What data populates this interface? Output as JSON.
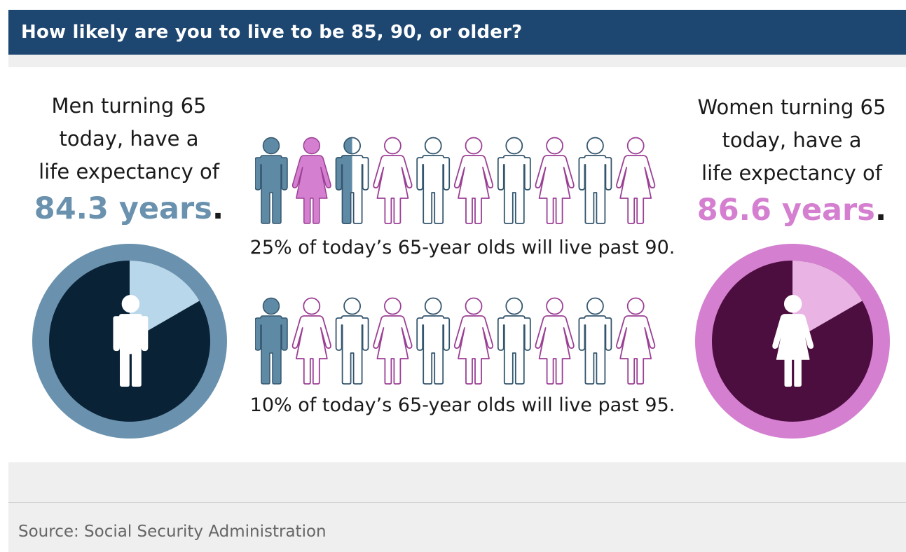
{
  "title": "How likely are you to live to be 85, 90, or older?",
  "men": {
    "line1": "Men turning 65",
    "line2": "today, have a",
    "line3": "life expectancy of",
    "value": "84.3 years",
    "period": ".",
    "colors": {
      "ring": "#6a92ae",
      "face": "#0a2236",
      "wedge": "#b9d7ea",
      "icon": "#ffffff"
    }
  },
  "women": {
    "line1": "Women turning 65",
    "line2": "today, have a",
    "line3": "life expectancy of",
    "value": "86.6 years",
    "period": ".",
    "colors": {
      "ring": "#d47fd0",
      "face": "#4c0d3f",
      "wedge": "#e9b3e3",
      "icon": "#ffffff"
    }
  },
  "stats": [
    {
      "caption": "25% of today’s 65-year olds will live past 90.",
      "people": [
        "male-filled",
        "female-filled",
        "male-half",
        "female-outline",
        "male-outline",
        "female-outline",
        "male-outline",
        "female-outline",
        "male-outline",
        "female-outline"
      ]
    },
    {
      "caption": "10% of today’s 65-year olds will live past 95.",
      "people": [
        "male-filled",
        "female-outline",
        "male-outline",
        "female-outline",
        "male-outline",
        "female-outline",
        "male-outline",
        "female-outline",
        "male-outline",
        "female-outline"
      ]
    }
  ],
  "people_colors": {
    "male_fill": "#5f8aa6",
    "male_stroke": "#34566d",
    "female_fill": "#d47fd0",
    "female_stroke": "#9b3f94"
  },
  "source": "Source: Social Security Administration"
}
